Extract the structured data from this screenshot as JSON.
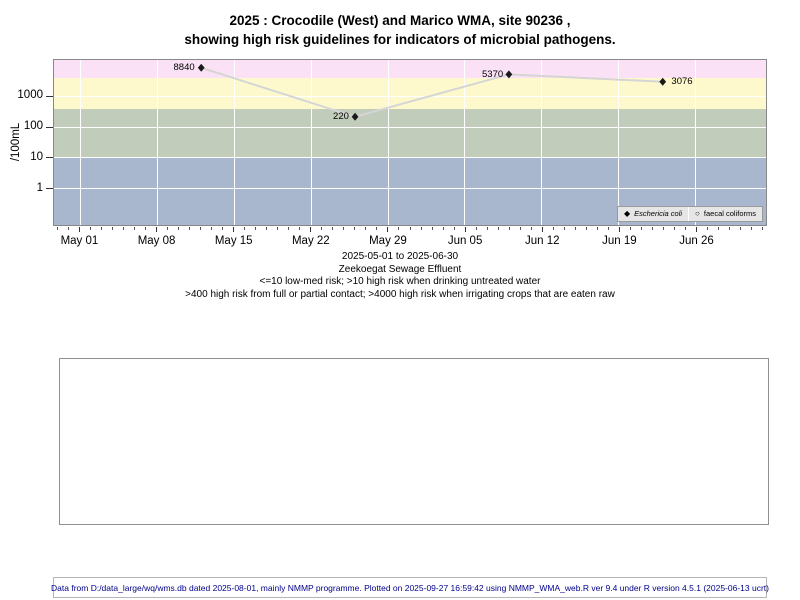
{
  "title": {
    "line1": "2025 : Crocodile (West) and Marico WMA, site 90236 ,",
    "line2": "showing high risk guidelines for indicators of microbial pathogens."
  },
  "caption": {
    "line1": "2025-05-01 to 2025-06-30",
    "line2": "Zeekoegat Sewage Effluent",
    "line3": "<=10 low-med risk; >10 high risk when drinking untreated water",
    "line4": ">400 high risk from full or partial contact; >4000 high risk when irrigating crops that are eaten raw"
  },
  "footer": {
    "text": "Data from D:/data_large/wq/wms.db dated 2025-08-01, mainly NMMP programme. Plotted on 2025-09-27 16:59:42 using NMMP_WMA_web.R ver 9.4 under R version 4.5.1 (2025-06-13 ucrt)"
  },
  "chart_data": {
    "type": "line",
    "title": "2025 : Crocodile (West) and Marico WMA, site 90236 , showing high risk guidelines for indicators of microbial pathogens.",
    "ylabel": "/100mL",
    "y_scale": "log10",
    "ylim": [
      0.1,
      10000
    ],
    "y_ticks": [
      1,
      10,
      100,
      1000
    ],
    "x_range": [
      "2025-05-01",
      "2025-06-30"
    ],
    "x_ticks": [
      "May 01",
      "May 08",
      "May 15",
      "May 22",
      "May 29",
      "Jun 05",
      "Jun 12",
      "Jun 19",
      "Jun 26"
    ],
    "grid": "white-on-bands",
    "legend_position": "bottom-right-inside",
    "series": [
      {
        "name": "Eschericia coli",
        "marker": "filled-diamond",
        "points": [
          {
            "date": "2025-05-12",
            "value": 8840,
            "label_side": "left"
          },
          {
            "date": "2025-05-26",
            "value": 220,
            "label_side": "left"
          },
          {
            "date": "2025-06-09",
            "value": 5370,
            "label_side": "left"
          },
          {
            "date": "2025-06-23",
            "value": 3076,
            "label_side": "right"
          }
        ]
      },
      {
        "name": "faecal coliforms",
        "marker": "open-circle",
        "points": []
      }
    ],
    "risk_bands": [
      {
        "risk_label": ">4000 high risk when irrigating crops that are eaten raw",
        "from": 4000,
        "to": null,
        "color": "#FAE1F5"
      },
      {
        "risk_label": ">400 high risk from full or partial contact",
        "from": 400,
        "to": 4000,
        "color": "#FDF9CD"
      },
      {
        "risk_label": ">10 high risk when drinking untreated water",
        "from": 10,
        "to": 400,
        "color": "#C2CCBA"
      },
      {
        "risk_label": "<=10 low-med risk",
        "from": null,
        "to": 10,
        "color": "#A8B6CE"
      }
    ],
    "colors": {
      "line": "#D5D5D5",
      "marker": "#1A1A1A",
      "gridline": "#FFFFFF",
      "axis_tick": "#333333",
      "footer_text": "#00008B"
    }
  }
}
